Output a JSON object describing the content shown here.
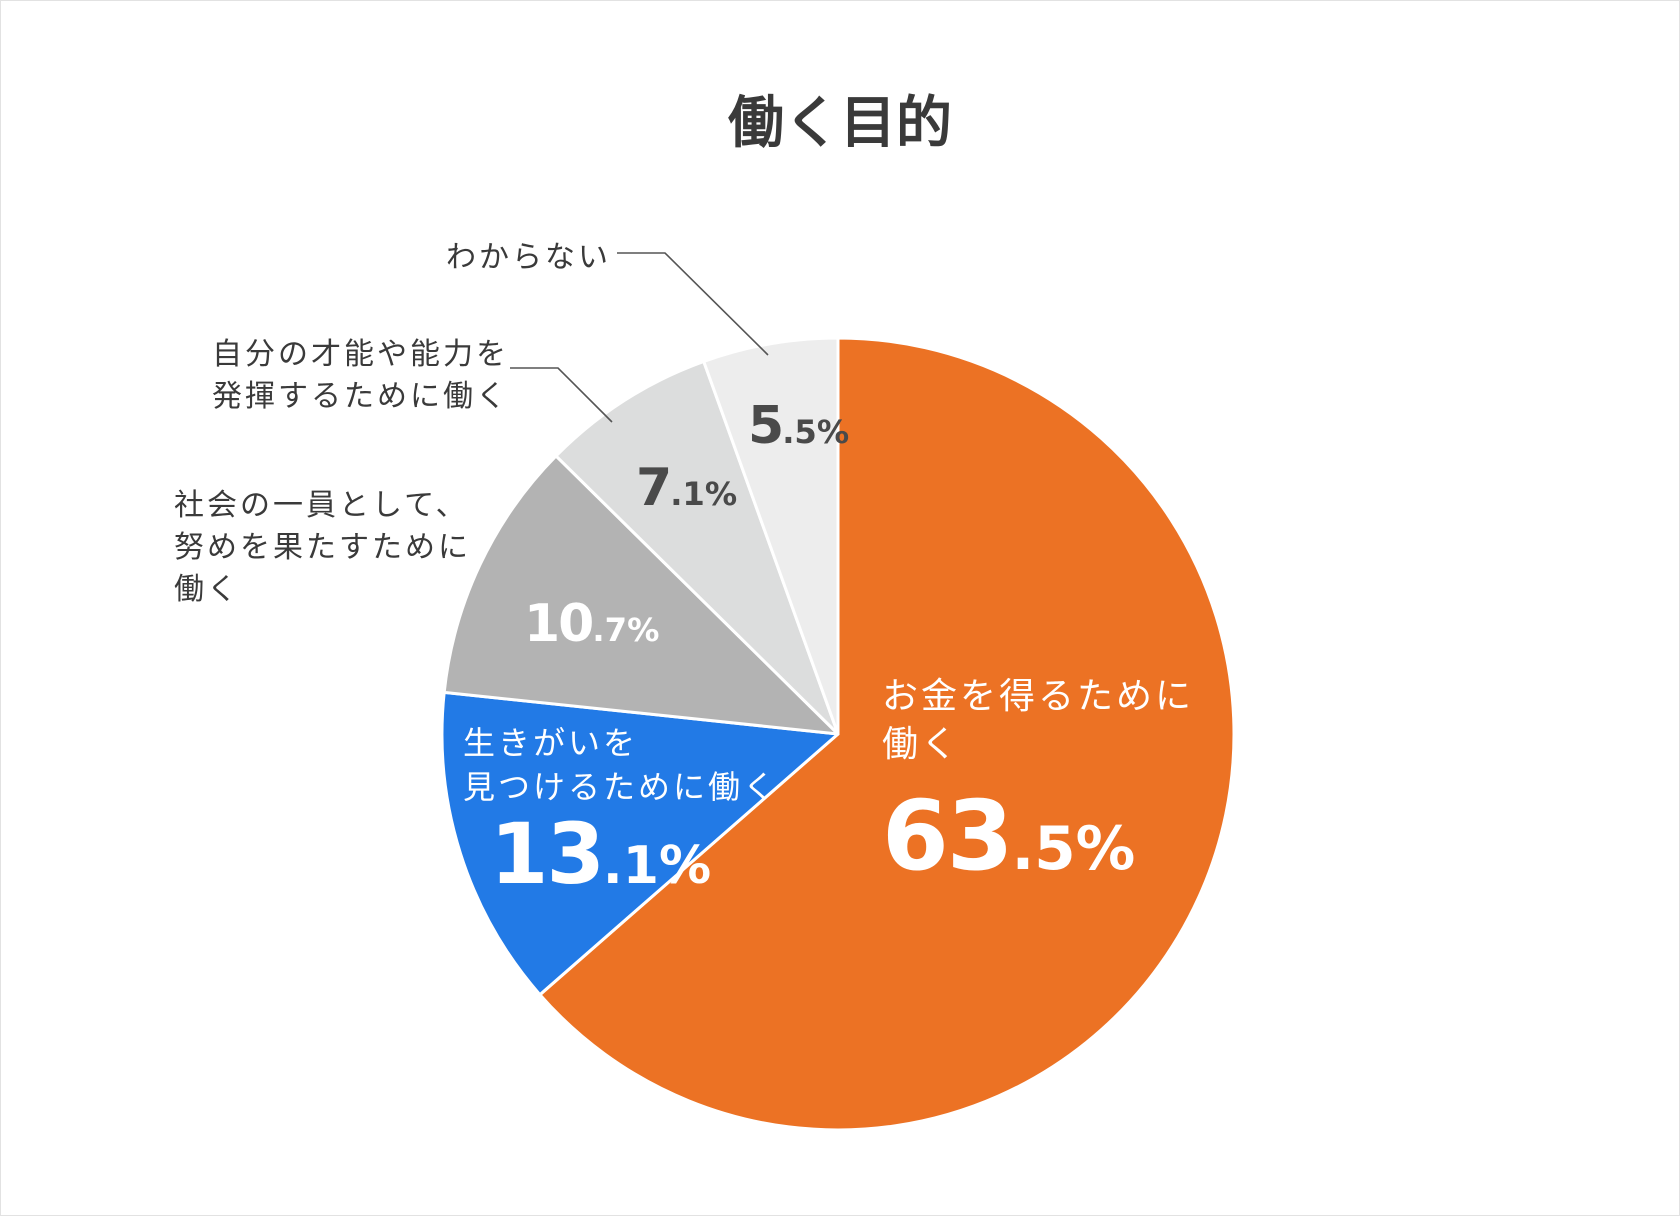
{
  "chart_data": {
    "type": "pie",
    "title": "働く目的",
    "slices": [
      {
        "label": "お金を得るために働く",
        "value": 63.5,
        "int": "63",
        "dec": ".5",
        "unit": "%",
        "color": "#ec7224"
      },
      {
        "label": "生きがいを見つけるために働く",
        "value": 13.1,
        "int": "13",
        "dec": ".1",
        "unit": "%",
        "color": "#227ae6"
      },
      {
        "label": "社会の一員として、努めを果たすために働く",
        "value": 10.7,
        "int": "10",
        "dec": ".7",
        "unit": "%",
        "color": "#b3b3b3"
      },
      {
        "label": "自分の才能や能力を発揮するために働く",
        "value": 7.1,
        "int": "7",
        "dec": ".1",
        "unit": "%",
        "color": "#dcdddd"
      },
      {
        "label": "わからない",
        "value": 5.5,
        "int": "5",
        "dec": ".5",
        "unit": "%",
        "color": "#ededed"
      }
    ],
    "start_angle": "12 o'clock",
    "direction": "clockwise"
  },
  "labels": {
    "s0": [
      "お金を得るために",
      "働く"
    ],
    "s1": [
      "生きがいを",
      "見つけるために働く"
    ],
    "s2": [
      "社会の一員として、",
      "努めを果たすために",
      "働く"
    ],
    "s3": [
      "自分の才能や能力を",
      "発揮するために働く"
    ],
    "s4": [
      "わからない"
    ]
  }
}
